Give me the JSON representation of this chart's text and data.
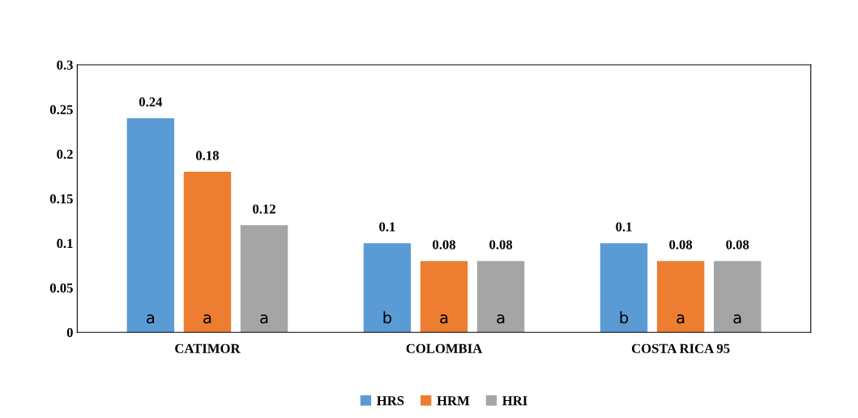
{
  "chart_data": {
    "type": "bar",
    "categories": [
      "CATIMOR",
      "COLOMBIA",
      "COSTA RICA 95"
    ],
    "series": [
      {
        "name": "HRS",
        "color": "#5b9bd5",
        "values": [
          0.24,
          0.1,
          0.1
        ]
      },
      {
        "name": "HRM",
        "color": "#ed7d31",
        "values": [
          0.18,
          0.08,
          0.08
        ]
      },
      {
        "name": "HRI",
        "color": "#a5a5a5",
        "values": [
          0.12,
          0.08,
          0.08
        ]
      }
    ],
    "ylim": [
      0,
      0.3
    ],
    "yticks": [
      0,
      0.05,
      0.1,
      0.15,
      0.2,
      0.25,
      0.3
    ],
    "data_labels": true,
    "legend": "bottom",
    "grid": false,
    "annotations": [
      "a",
      "a",
      "a",
      "b",
      "a",
      "a",
      "b",
      "a",
      "a"
    ]
  }
}
